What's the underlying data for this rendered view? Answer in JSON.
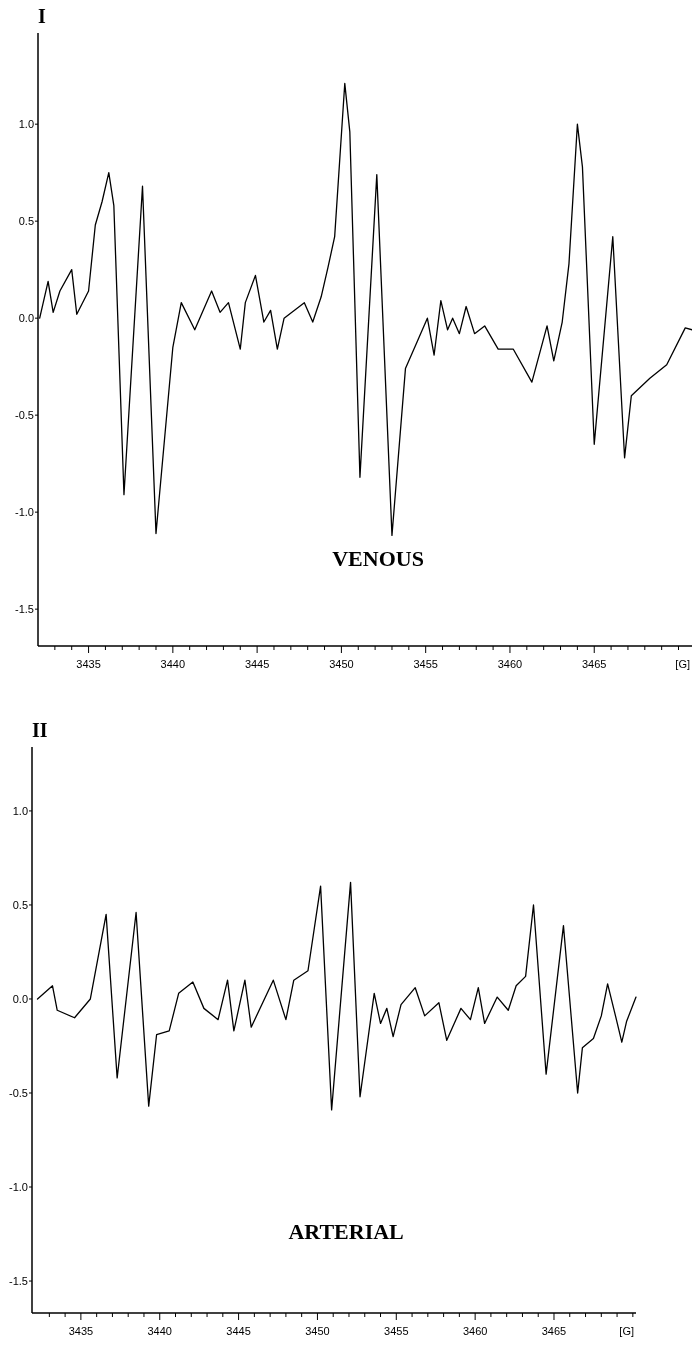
{
  "chart_data": [
    {
      "type": "line",
      "title": "I",
      "xlabel": "[G]",
      "annotations": [
        "VENOUS"
      ],
      "xlim": [
        3432,
        3470.8
      ],
      "ylim": [
        -1.69,
        1.47
      ],
      "xticks": [
        {
          "value": 3433,
          "label": null
        },
        {
          "value": 3434,
          "label": null
        },
        3435,
        {
          "value": 3436,
          "label": null
        },
        {
          "value": 3437,
          "label": null
        },
        {
          "value": 3438,
          "label": null
        },
        {
          "value": 3439,
          "label": null
        },
        3440,
        {
          "value": 3441,
          "label": null
        },
        {
          "value": 3442,
          "label": null
        },
        {
          "value": 3443,
          "label": null
        },
        {
          "value": 3444,
          "label": null
        },
        3445,
        {
          "value": 3446,
          "label": null
        },
        {
          "value": 3447,
          "label": null
        },
        {
          "value": 3448,
          "label": null
        },
        {
          "value": 3449,
          "label": null
        },
        3450,
        {
          "value": 3451,
          "label": null
        },
        {
          "value": 3452,
          "label": null
        },
        {
          "value": 3453,
          "label": null
        },
        {
          "value": 3454,
          "label": null
        },
        3455,
        {
          "value": 3456,
          "label": null
        },
        {
          "value": 3457,
          "label": null
        },
        {
          "value": 3458,
          "label": null
        },
        {
          "value": 3459,
          "label": null
        },
        3460,
        {
          "value": 3461,
          "label": null
        },
        {
          "value": 3462,
          "label": null
        },
        {
          "value": 3463,
          "label": null
        },
        {
          "value": 3464,
          "label": null
        },
        3465,
        {
          "value": 3466,
          "label": null
        },
        {
          "value": 3467,
          "label": null
        },
        {
          "value": 3468,
          "label": null
        },
        {
          "value": 3469,
          "label": null
        },
        {
          "value": 3470,
          "label": null
        }
      ],
      "yticks": [
        {
          "value": 1,
          "label": "1.0"
        },
        0.5,
        {
          "value": 0,
          "label": "0.0"
        },
        -0.5,
        {
          "value": -1,
          "label": "-1.0"
        },
        -1.5
      ],
      "grid": false,
      "marker": "none",
      "line_style": "solid",
      "series": [
        {
          "color": "#000000",
          "x": [
            3432.1,
            3432.6,
            3432.9,
            3433.3,
            3434.0,
            3434.3,
            3435.0,
            3435.4,
            3435.8,
            3436.2,
            3436.5,
            3437.1,
            3438.2,
            3439.0,
            3440.0,
            3440.5,
            3441.3,
            3442.3,
            3442.8,
            3443.3,
            3444.0,
            3444.3,
            3444.9,
            3445.4,
            3445.8,
            3446.2,
            3446.6,
            3447.8,
            3448.3,
            3448.8,
            3449.2,
            3449.6,
            3450.2,
            3450.5,
            3451.1,
            3452.1,
            3453.0,
            3453.8,
            3454.5,
            3455.1,
            3455.5,
            3455.9,
            3456.3,
            3456.6,
            3457.0,
            3457.4,
            3457.9,
            3458.5,
            3459.3,
            3460.2,
            3461.3,
            3462.2,
            3462.6,
            3463.1,
            3463.5,
            3464.0,
            3464.3,
            3465.0,
            3466.1,
            3466.8,
            3467.2,
            3468.3,
            3469.3,
            3470.4,
            3470.8
          ],
          "values": [
            0.0,
            0.19,
            0.03,
            0.14,
            0.25,
            0.02,
            0.14,
            0.48,
            0.6,
            0.75,
            0.58,
            -0.91,
            0.68,
            -1.11,
            -0.15,
            0.08,
            -0.06,
            0.14,
            0.03,
            0.08,
            -0.16,
            0.08,
            0.22,
            -0.02,
            0.04,
            -0.16,
            0.0,
            0.08,
            -0.02,
            0.11,
            0.26,
            0.42,
            1.21,
            0.96,
            -0.82,
            0.74,
            -1.12,
            -0.26,
            -0.12,
            0.0,
            -0.19,
            0.09,
            -0.06,
            0.0,
            -0.08,
            0.06,
            -0.08,
            -0.04,
            -0.16,
            -0.16,
            -0.33,
            -0.04,
            -0.22,
            -0.02,
            0.28,
            1.0,
            0.78,
            -0.65,
            0.42,
            -0.72,
            -0.4,
            -0.31,
            -0.24,
            -0.05,
            -0.06
          ]
        }
      ]
    },
    {
      "type": "line",
      "title": "II",
      "xlabel": "[G]",
      "annotations": [
        "ARTERIAL"
      ],
      "xlim": [
        3431.9,
        3470.2
      ],
      "ylim": [
        -1.67,
        1.34
      ],
      "xticks": [
        {
          "value": 3433,
          "label": null
        },
        {
          "value": 3434,
          "label": null
        },
        3435,
        {
          "value": 3436,
          "label": null
        },
        {
          "value": 3437,
          "label": null
        },
        {
          "value": 3438,
          "label": null
        },
        {
          "value": 3439,
          "label": null
        },
        3440,
        {
          "value": 3441,
          "label": null
        },
        {
          "value": 3442,
          "label": null
        },
        {
          "value": 3443,
          "label": null
        },
        {
          "value": 3444,
          "label": null
        },
        3445,
        {
          "value": 3446,
          "label": null
        },
        {
          "value": 3447,
          "label": null
        },
        {
          "value": 3448,
          "label": null
        },
        {
          "value": 3449,
          "label": null
        },
        3450,
        {
          "value": 3451,
          "label": null
        },
        {
          "value": 3452,
          "label": null
        },
        {
          "value": 3453,
          "label": null
        },
        {
          "value": 3454,
          "label": null
        },
        3455,
        {
          "value": 3456,
          "label": null
        },
        {
          "value": 3457,
          "label": null
        },
        {
          "value": 3458,
          "label": null
        },
        {
          "value": 3459,
          "label": null
        },
        3460,
        {
          "value": 3461,
          "label": null
        },
        {
          "value": 3462,
          "label": null
        },
        {
          "value": 3463,
          "label": null
        },
        {
          "value": 3464,
          "label": null
        },
        3465,
        {
          "value": 3466,
          "label": null
        },
        {
          "value": 3467,
          "label": null
        },
        {
          "value": 3468,
          "label": null
        },
        {
          "value": 3469,
          "label": null
        },
        {
          "value": 3470,
          "label": null
        }
      ],
      "yticks": [
        {
          "value": 1,
          "label": "1.0"
        },
        0.5,
        {
          "value": 0,
          "label": "0.0"
        },
        -0.5,
        {
          "value": -1,
          "label": "-1.0"
        },
        -1.5
      ],
      "grid": false,
      "marker": "none",
      "line_style": "solid",
      "series": [
        {
          "color": "#000000",
          "x": [
            3432.25,
            3433.2,
            3433.5,
            3434.6,
            3435.6,
            3436.6,
            3437.3,
            3438.5,
            3439.3,
            3439.8,
            3440.6,
            3441.2,
            3442.1,
            3442.8,
            3443.7,
            3444.3,
            3444.7,
            3445.4,
            3445.8,
            3447.2,
            3448.0,
            3448.5,
            3449.4,
            3450.2,
            3450.9,
            3452.1,
            3452.7,
            3453.6,
            3454.0,
            3454.4,
            3454.8,
            3455.3,
            3456.2,
            3456.8,
            3457.7,
            3458.2,
            3459.1,
            3459.7,
            3460.2,
            3460.6,
            3461.4,
            3462.1,
            3462.6,
            3463.2,
            3463.7,
            3464.5,
            3465.6,
            3466.5,
            3466.8,
            3467.5,
            3468.0,
            3468.4,
            3468.9,
            3469.3,
            3469.6,
            3470.2
          ],
          "values": [
            0.0,
            0.07,
            -0.06,
            -0.1,
            0.0,
            0.45,
            -0.42,
            0.46,
            -0.57,
            -0.19,
            -0.17,
            0.03,
            0.09,
            -0.05,
            -0.11,
            0.1,
            -0.17,
            0.1,
            -0.15,
            0.1,
            -0.11,
            0.1,
            0.15,
            0.6,
            -0.59,
            0.62,
            -0.52,
            0.03,
            -0.13,
            -0.05,
            -0.2,
            -0.03,
            0.06,
            -0.09,
            -0.02,
            -0.22,
            -0.05,
            -0.11,
            0.06,
            -0.13,
            0.01,
            -0.06,
            0.07,
            0.12,
            0.5,
            -0.4,
            0.39,
            -0.5,
            -0.26,
            -0.21,
            -0.09,
            0.08,
            -0.09,
            -0.23,
            -0.12,
            0.01
          ]
        }
      ]
    }
  ]
}
